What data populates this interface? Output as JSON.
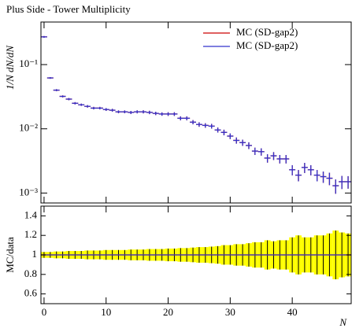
{
  "chart_data": {
    "type": "histogram-ratio",
    "title": "Plus Side - Tower Multiplicity",
    "ylabel": "1/N dN/dN",
    "ratio_ylabel": "MC/data",
    "xlabel": "N",
    "x": [
      0,
      1,
      2,
      3,
      4,
      5,
      6,
      7,
      8,
      9,
      10,
      11,
      12,
      13,
      14,
      15,
      16,
      17,
      18,
      19,
      20,
      21,
      22,
      23,
      24,
      25,
      26,
      27,
      28,
      29,
      30,
      31,
      32,
      33,
      34,
      35,
      36,
      37,
      38,
      39,
      40,
      41,
      42,
      43,
      44,
      45,
      46,
      47,
      48,
      49
    ],
    "series": [
      {
        "name": "MC (SD-gap2)",
        "color": "#cc0000",
        "values": [
          0.27,
          0.062,
          0.04,
          0.032,
          0.029,
          0.025,
          0.0237,
          0.0224,
          0.021,
          0.021,
          0.02,
          0.0195,
          0.0184,
          0.0184,
          0.018,
          0.0184,
          0.0184,
          0.018,
          0.0174,
          0.017,
          0.017,
          0.017,
          0.0146,
          0.0146,
          0.0127,
          0.0117,
          0.0113,
          0.011,
          0.0096,
          0.0088,
          0.0077,
          0.0066,
          0.0061,
          0.0055,
          0.0045,
          0.0044,
          0.0035,
          0.0038,
          0.0034,
          0.0034,
          0.0023,
          0.0019,
          0.0025,
          0.0023,
          0.0019,
          0.0018,
          0.0017,
          0.0013,
          0.0015,
          0.0015
        ]
      },
      {
        "name": "MC (SD-gap2)",
        "color": "#3333cc",
        "values": [
          0.27,
          0.062,
          0.04,
          0.032,
          0.029,
          0.025,
          0.0237,
          0.0224,
          0.021,
          0.021,
          0.02,
          0.0195,
          0.0184,
          0.0184,
          0.018,
          0.0184,
          0.0184,
          0.018,
          0.0174,
          0.017,
          0.017,
          0.017,
          0.0146,
          0.0146,
          0.0127,
          0.0117,
          0.0113,
          0.011,
          0.0096,
          0.0088,
          0.0077,
          0.0066,
          0.0061,
          0.0055,
          0.0045,
          0.0044,
          0.0035,
          0.0038,
          0.0034,
          0.0034,
          0.0023,
          0.0019,
          0.0025,
          0.0023,
          0.0019,
          0.0018,
          0.0017,
          0.0013,
          0.0015,
          0.0015
        ]
      }
    ],
    "band_halfwidth": [
      0.03,
      0.03,
      0.035,
      0.035,
      0.04,
      0.04,
      0.04,
      0.045,
      0.045,
      0.045,
      0.05,
      0.05,
      0.05,
      0.05,
      0.055,
      0.055,
      0.055,
      0.06,
      0.06,
      0.06,
      0.065,
      0.065,
      0.07,
      0.07,
      0.075,
      0.08,
      0.08,
      0.085,
      0.09,
      0.1,
      0.1,
      0.11,
      0.11,
      0.12,
      0.13,
      0.13,
      0.15,
      0.14,
      0.15,
      0.15,
      0.18,
      0.2,
      0.18,
      0.18,
      0.2,
      0.2,
      0.22,
      0.25,
      0.23,
      0.22
    ],
    "band_color": "#ffff00",
    "ratio_reference": 1,
    "xlim": [
      -0.5,
      49.5
    ],
    "xticks": [
      0,
      10,
      20,
      30,
      40
    ],
    "ylim": [
      0.0007,
      0.46
    ],
    "yticks": [
      {
        "value": 0.1,
        "label": "10⁻¹"
      },
      {
        "value": 0.01,
        "label": "10⁻²"
      },
      {
        "value": 0.001,
        "label": "10⁻³"
      }
    ],
    "log_y": true,
    "ratio_ylim": [
      0.5,
      1.5
    ],
    "ratio_yticks": [
      0.6,
      0.8,
      1,
      1.2,
      1.4
    ],
    "legend": "upper right"
  }
}
